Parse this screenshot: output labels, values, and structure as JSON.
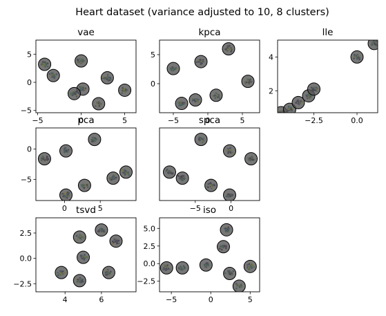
{
  "figure": {
    "title": "Heart dataset (variance adjusted to 10, 8 clusters)"
  },
  "colors": {
    "viridis": [
      "#440154",
      "#3b528b",
      "#21918c",
      "#5ec962",
      "#fde725"
    ],
    "centroid_fill": "#555555",
    "centroid_edge": "#000000"
  },
  "chart_data": [
    {
      "type": "scatter",
      "title": "vae",
      "xlim": [
        -5.2,
        6.3
      ],
      "ylim": [
        -5.4,
        7.5
      ],
      "xticks": [
        {
          "v": -5,
          "label": "−5"
        },
        {
          "v": 0,
          "label": "0"
        },
        {
          "v": 5,
          "label": "5"
        }
      ],
      "yticks": [
        {
          "v": -5,
          "label": "−5"
        },
        {
          "v": 0,
          "label": "0"
        },
        {
          "v": 5,
          "label": "5"
        }
      ],
      "centroids": [
        [
          -4.2,
          3.2
        ],
        [
          -3.2,
          1.2
        ],
        [
          0.0,
          3.8
        ],
        [
          0.2,
          -1.2
        ],
        [
          -0.8,
          -2.0
        ],
        [
          3.0,
          0.8
        ],
        [
          2.0,
          -3.8
        ],
        [
          5.0,
          -1.4
        ]
      ]
    },
    {
      "type": "scatter",
      "title": "kpca",
      "xlim": [
        -7.0,
        7.5
      ],
      "ylim": [
        -5.0,
        7.5
      ],
      "xticks": [
        {
          "v": -5,
          "label": "−5"
        },
        {
          "v": 0,
          "label": "0"
        },
        {
          "v": 5,
          "label": "5"
        }
      ],
      "yticks": [
        {
          "v": 0,
          "label": "0"
        },
        {
          "v": 5,
          "label": "5"
        }
      ],
      "centroids": [
        [
          -5.0,
          2.6
        ],
        [
          -1.0,
          3.8
        ],
        [
          3.0,
          6.0
        ],
        [
          -3.8,
          -3.4
        ],
        [
          -1.8,
          -2.8
        ],
        [
          1.2,
          -2.0
        ],
        [
          5.8,
          0.4
        ]
      ]
    },
    {
      "type": "scatter",
      "title": "lle",
      "xlim": [
        -4.6,
        1.2
      ],
      "ylim": [
        0.7,
        5.0
      ],
      "xticks": [
        {
          "v": -2.5,
          "label": "−2.5"
        },
        {
          "v": 0,
          "label": "0.0"
        }
      ],
      "yticks": [
        {
          "v": 2,
          "label": "2"
        },
        {
          "v": 4,
          "label": "4"
        }
      ],
      "centroids": [
        [
          -4.4,
          0.7
        ],
        [
          -3.9,
          0.9
        ],
        [
          -3.4,
          1.3
        ],
        [
          -2.8,
          1.7
        ],
        [
          -2.5,
          2.1
        ],
        [
          0.0,
          4.0
        ],
        [
          1.0,
          4.8
        ]
      ]
    },
    {
      "type": "scatter",
      "title": "pca",
      "xlim": [
        -4.0,
        10.0
      ],
      "ylim": [
        -8.5,
        3.5
      ],
      "xticks": [
        {
          "v": 0,
          "label": "0"
        },
        {
          "v": 5,
          "label": "5"
        }
      ],
      "yticks": [
        {
          "v": -5,
          "label": "−5"
        },
        {
          "v": 0,
          "label": "0"
        }
      ],
      "centroids": [
        [
          -2.8,
          -1.6
        ],
        [
          0.2,
          -0.3
        ],
        [
          4.2,
          1.6
        ],
        [
          0.2,
          -7.6
        ],
        [
          2.8,
          -6.0
        ],
        [
          6.8,
          -4.8
        ],
        [
          8.6,
          -3.8
        ]
      ]
    },
    {
      "type": "scatter",
      "title": "spca",
      "xlim": [
        -10.0,
        4.0
      ],
      "ylim": [
        -8.5,
        3.5
      ],
      "xticks": [
        {
          "v": -5,
          "label": "−5"
        },
        {
          "v": 0,
          "label": "0"
        }
      ],
      "yticks": [],
      "centroids": [
        [
          -4.2,
          1.6
        ],
        [
          -0.2,
          -0.3
        ],
        [
          2.8,
          -1.6
        ],
        [
          -8.6,
          -3.8
        ],
        [
          -6.8,
          -4.8
        ],
        [
          -2.8,
          -6.0
        ],
        [
          -0.2,
          -7.6
        ]
      ]
    },
    {
      "type": "scatter",
      "title": "tsvd",
      "xlim": [
        2.4,
        7.9
      ],
      "ylim": [
        -3.3,
        4.0
      ],
      "xticks": [
        {
          "v": 4,
          "label": "4"
        },
        {
          "v": 6,
          "label": "6"
        }
      ],
      "yticks": [
        {
          "v": -2.5,
          "label": "−2.5"
        },
        {
          "v": 0,
          "label": "0.0"
        },
        {
          "v": 2.5,
          "label": "2.5"
        }
      ],
      "centroids": [
        [
          6.0,
          2.8
        ],
        [
          4.8,
          2.1
        ],
        [
          6.8,
          1.7
        ],
        [
          5.0,
          0.1
        ],
        [
          3.8,
          -1.4
        ],
        [
          4.8,
          -2.2
        ],
        [
          6.4,
          -1.4
        ]
      ]
    },
    {
      "type": "scatter",
      "title": "iso",
      "xlim": [
        -6.5,
        6.2
      ],
      "ylim": [
        -4.0,
        6.5
      ],
      "xticks": [
        {
          "v": -5,
          "label": "−5"
        },
        {
          "v": 0,
          "label": "0"
        },
        {
          "v": 5,
          "label": "5"
        }
      ],
      "yticks": [
        {
          "v": -2.5,
          "label": "−2.5"
        },
        {
          "v": 0,
          "label": "0.0"
        },
        {
          "v": 2.5,
          "label": "2.5"
        },
        {
          "v": 5,
          "label": "5.0"
        }
      ],
      "centroids": [
        [
          -5.6,
          -0.6
        ],
        [
          -3.6,
          -0.6
        ],
        [
          -0.6,
          -0.2
        ],
        [
          1.6,
          2.4
        ],
        [
          2.0,
          4.8
        ],
        [
          2.4,
          -1.4
        ],
        [
          3.6,
          -3.2
        ],
        [
          5.0,
          -0.4
        ]
      ]
    }
  ]
}
